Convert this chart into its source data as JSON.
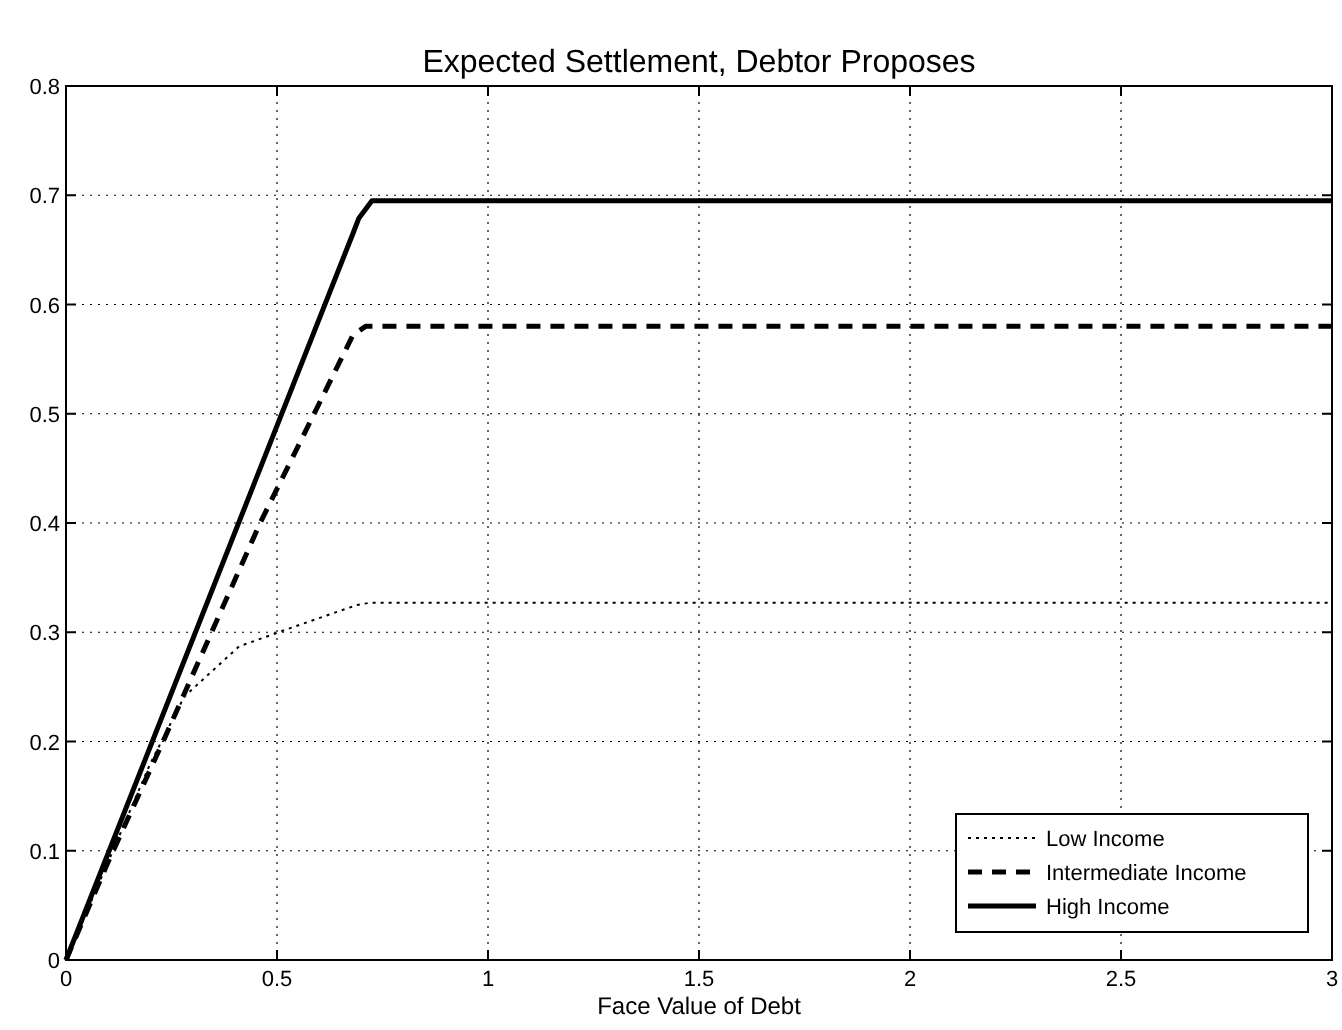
{
  "chart_data": {
    "type": "line",
    "title": "Expected Settlement, Debtor Proposes",
    "xlabel": "Face Value of Debt",
    "xlim": [
      0,
      3
    ],
    "xticks": [
      0,
      0.5,
      1,
      1.5,
      2,
      2.5,
      3
    ],
    "ylim": [
      0,
      0.8
    ],
    "yticks": [
      0,
      0.1,
      0.2,
      0.3,
      0.4,
      0.5,
      0.6,
      0.7,
      0.8
    ],
    "grid": true,
    "legend": "bottom right",
    "series": [
      {
        "name": "Low Income",
        "color": "#000000",
        "line_style": "dotted",
        "x": [
          0,
          0.1,
          0.2,
          0.28,
          0.41,
          0.54,
          0.69,
          0.72,
          3
        ],
        "values": [
          0,
          0.09,
          0.18,
          0.241,
          0.287,
          0.305,
          0.325,
          0.327,
          0.327
        ]
      },
      {
        "name": "Intermediate Income",
        "color": "#000000",
        "line_style": "dashed",
        "x": [
          0,
          0.1,
          0.23,
          0.46,
          0.68,
          0.71,
          3
        ],
        "values": [
          0,
          0.09,
          0.2,
          0.4,
          0.572,
          0.58,
          0.58
        ]
      },
      {
        "name": "High Income",
        "color": "#000000",
        "line_style": "solid",
        "x": [
          0,
          0.68,
          0.694,
          0.725,
          3
        ],
        "values": [
          0,
          0.665,
          0.679,
          0.695,
          0.695
        ]
      }
    ]
  }
}
